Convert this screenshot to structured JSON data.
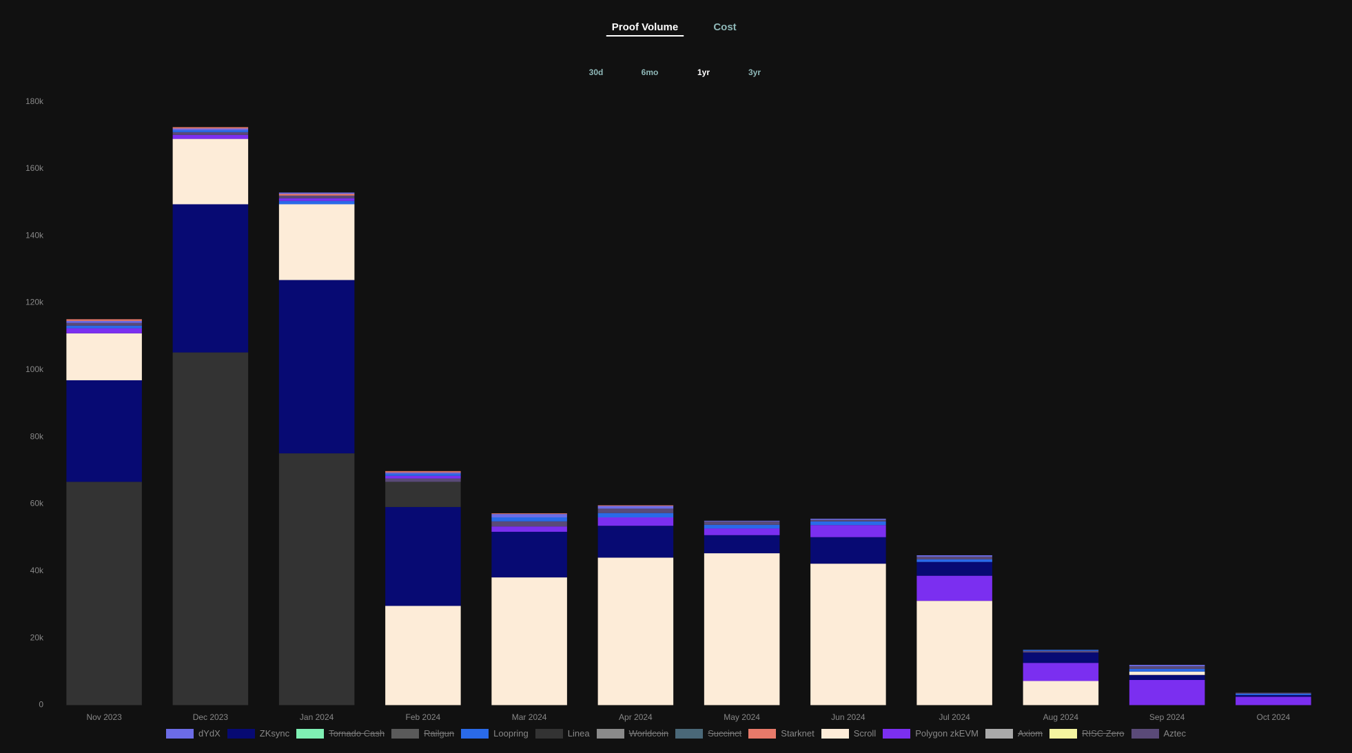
{
  "controls": {
    "tabs": [
      "Proof Volume",
      "Cost"
    ],
    "active_tab": 0,
    "ranges": [
      "30d",
      "6mo",
      "1yr",
      "3yr"
    ],
    "active_range": 2
  },
  "chart_data": {
    "type": "stacked_bar",
    "categories": [
      "Nov 2023",
      "Dec 2023",
      "Jan 2024",
      "Feb 2024",
      "Mar 2024",
      "Apr 2024",
      "May 2024",
      "Jun 2024",
      "Jul 2024",
      "Aug 2024",
      "Sep 2024",
      "Oct 2024"
    ],
    "ylim": [
      0,
      180000
    ],
    "yticks": [
      0,
      {
        "value": 20000,
        "label": "20k"
      },
      {
        "value": 40000,
        "label": "40k"
      },
      {
        "value": 60000,
        "label": "60k"
      },
      {
        "value": 80000,
        "label": "80k"
      },
      {
        "value": 100000,
        "label": "100k"
      },
      {
        "value": 120000,
        "label": "120k"
      },
      {
        "value": 140000,
        "label": "140k"
      },
      {
        "value": 160000,
        "label": "160k"
      },
      {
        "value": 180000,
        "label": "180k"
      }
    ],
    "legend": "bottom",
    "series": [
      {
        "name": "dYdX",
        "color": "#6c6ce6",
        "values": [
          600,
          500,
          400,
          400,
          1000,
          800,
          200,
          300,
          400,
          0,
          400,
          0
        ]
      },
      {
        "name": "ZKsync",
        "color": "#070a73",
        "values": [
          30300,
          44200,
          51700,
          29500,
          13600,
          9500,
          5400,
          7900,
          4100,
          3100,
          1500,
          500
        ]
      },
      {
        "name": "Tornado Cash",
        "color": "#7ff0b4",
        "hidden": true
      },
      {
        "name": "Railgun",
        "color": "#5a5a5a",
        "hidden": true
      },
      {
        "name": "Loopring",
        "color": "#2a6ae8",
        "values": [
          800,
          600,
          1000,
          600,
          1200,
          1300,
          1100,
          1100,
          800,
          300,
          800,
          400
        ]
      },
      {
        "name": "Linea",
        "color": "#333333",
        "values": [
          66600,
          105200,
          75100,
          7500,
          0,
          0,
          0,
          0,
          0,
          0,
          0,
          0
        ]
      },
      {
        "name": "Worldcoin",
        "color": "#8a8a8a",
        "hidden": true
      },
      {
        "name": "Succinct",
        "color": "#4a6878",
        "hidden": true
      },
      {
        "name": "Starknet",
        "color": "#e87a6a",
        "values": [
          500,
          400,
          500,
          400,
          200,
          200,
          0,
          0,
          0,
          0,
          0,
          0
        ]
      },
      {
        "name": "Scroll",
        "color": "#fdecd8",
        "values": [
          14000,
          19500,
          22600,
          29600,
          38100,
          44000,
          45300,
          42200,
          31100,
          7200,
          1000,
          0
        ]
      },
      {
        "name": "Polygon zkEVM",
        "color": "#7b2ff0",
        "values": [
          1500,
          1200,
          800,
          800,
          1600,
          2500,
          2000,
          3600,
          7500,
          5400,
          7500,
          2500
        ]
      },
      {
        "name": "Axiom",
        "color": "#aaaaaa",
        "hidden": true
      },
      {
        "name": "RISC Zero",
        "color": "#f5f5a0",
        "hidden": true
      },
      {
        "name": "Aztec",
        "color": "#5a4a78",
        "values": [
          800,
          800,
          800,
          1000,
          1500,
          1300,
          1000,
          500,
          800,
          500,
          800,
          300
        ]
      }
    ]
  }
}
